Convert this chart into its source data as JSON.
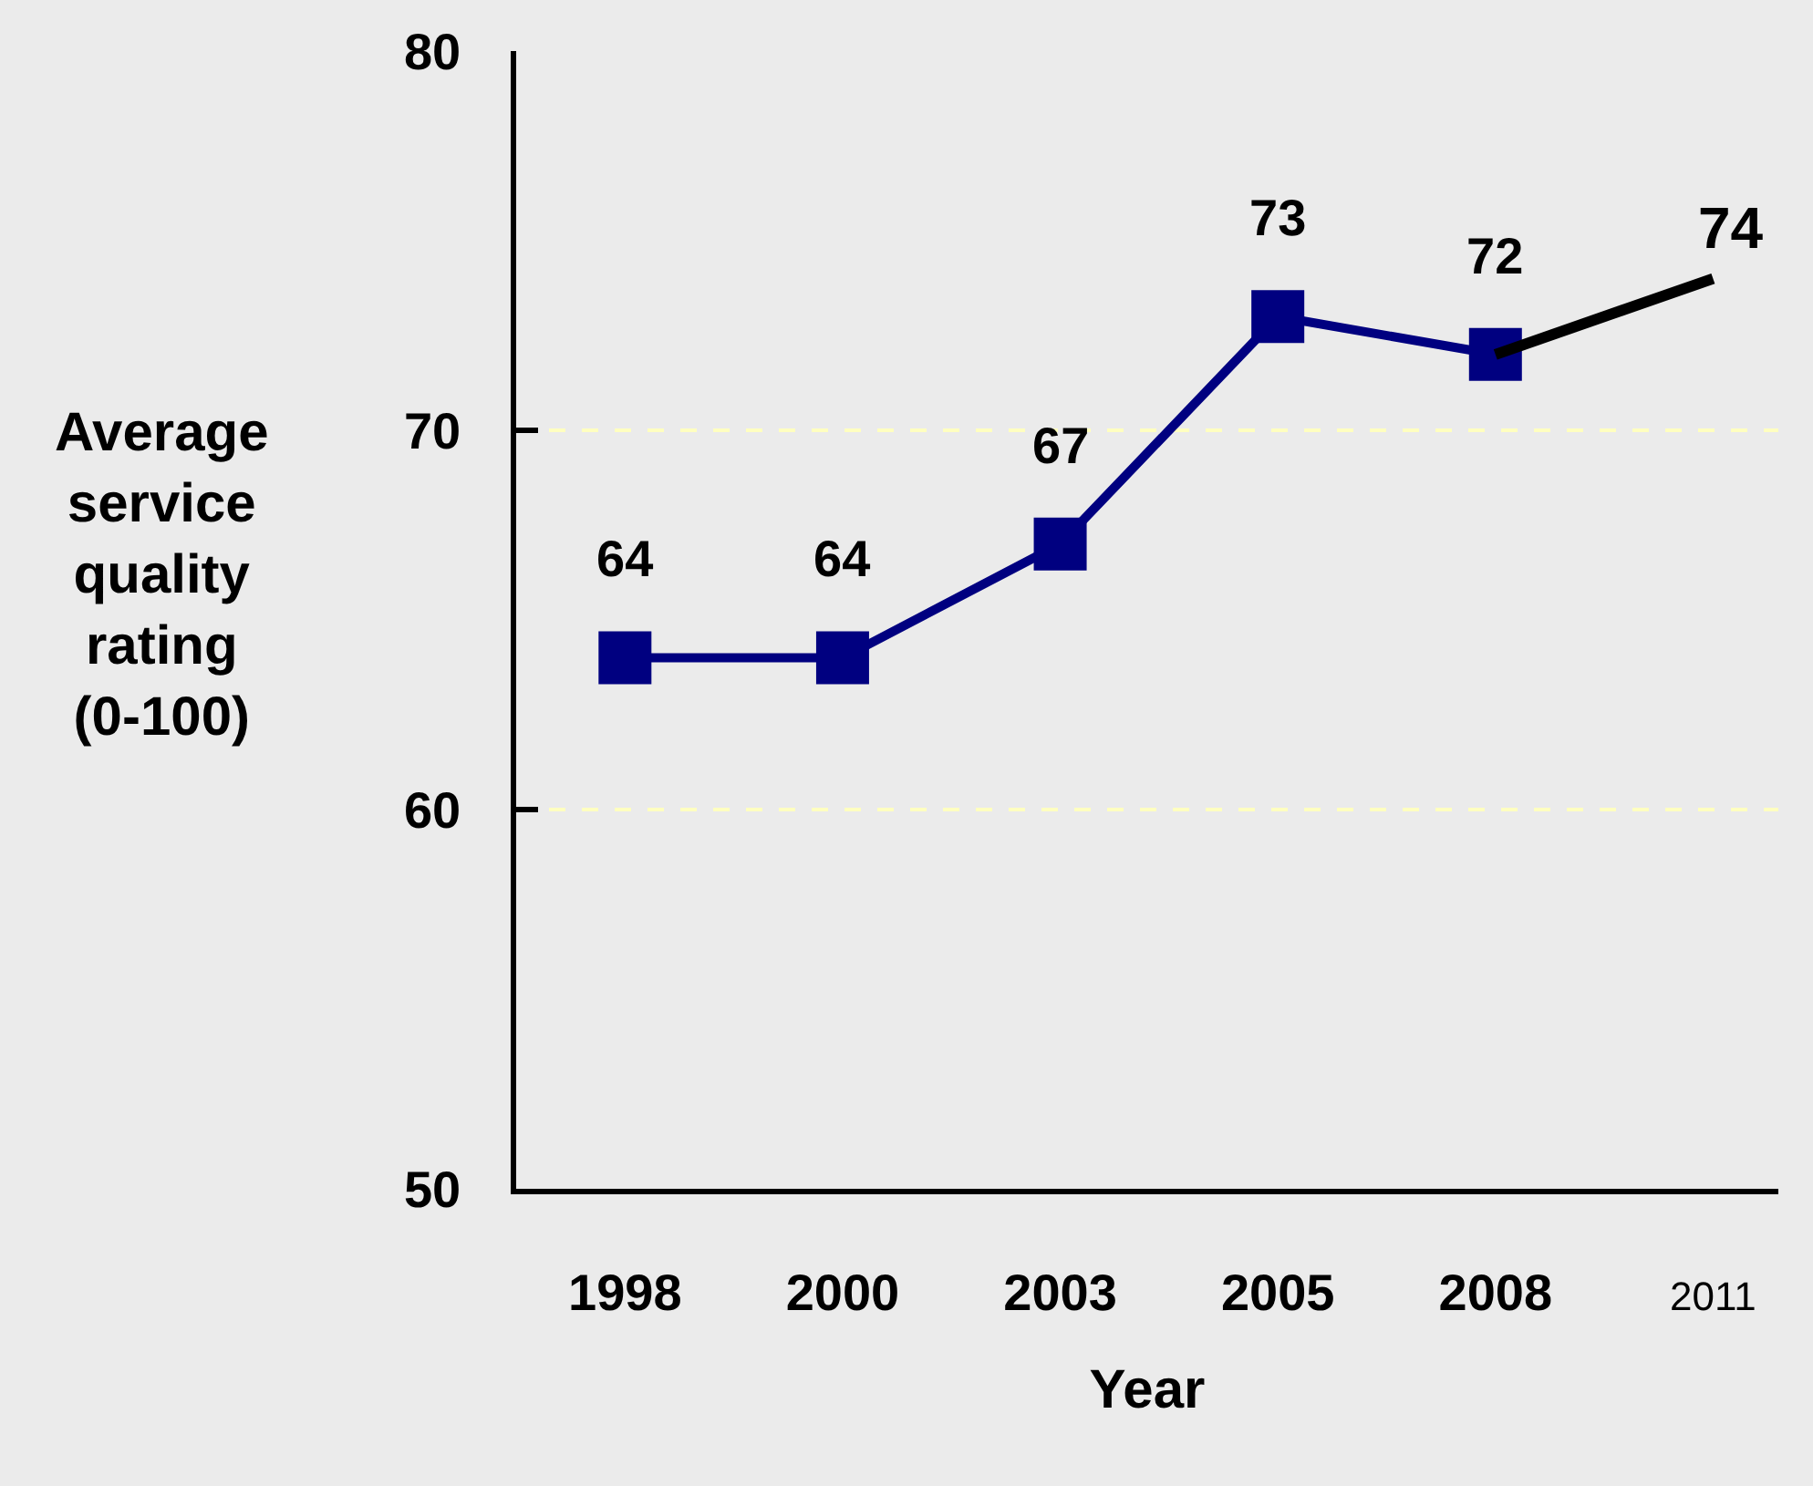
{
  "chart_data": {
    "type": "line",
    "categories": [
      "1998",
      "2000",
      "2003",
      "2005",
      "2008",
      "2011"
    ],
    "xlabel": "Year",
    "ylabel": "Average\nservice\nquality\nrating\n(0-100)",
    "ylim": [
      50,
      80
    ],
    "yticks": [
      50,
      60,
      70,
      80
    ],
    "grid": "y",
    "series": [
      {
        "color": "#000080",
        "marker": "square",
        "values": [
          64,
          64,
          67,
          73,
          72,
          null
        ],
        "value_labels": [
          "64",
          "64",
          "67",
          "73",
          "72",
          null
        ]
      },
      {
        "color": "#000000",
        "marker": "none",
        "values": [
          null,
          null,
          null,
          null,
          72,
          74
        ],
        "value_labels": [
          null,
          null,
          null,
          null,
          null,
          "74"
        ]
      }
    ]
  }
}
